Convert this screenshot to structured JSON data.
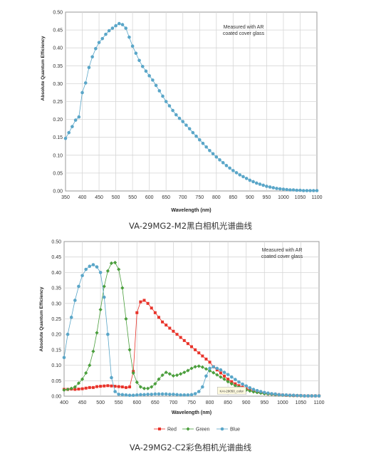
{
  "chart_data": [
    {
      "type": "line",
      "xlabel": "Wavelength (nm)",
      "ylabel": "Absolute Quantum Efficiency",
      "xlim": [
        350,
        1100
      ],
      "ylim": [
        0,
        0.5
      ],
      "xticks": [
        "350",
        "400",
        "450",
        "500",
        "550",
        "600",
        "650",
        "700",
        "750",
        "800",
        "850",
        "900",
        "950",
        "1000",
        "1050",
        "1100"
      ],
      "yticks": [
        "0.00",
        "0.05",
        "0.10",
        "0.15",
        "0.20",
        "0.25",
        "0.30",
        "0.35",
        "0.40",
        "0.45",
        "0.50"
      ],
      "grid": true,
      "annotation": [
        "Measured with AR",
        "coated cover glass"
      ],
      "caption": "VA-29MG2-M2黑白相机光谱曲线",
      "series": [
        {
          "color": "#5aa6c8",
          "x": [
            350,
            360,
            370,
            380,
            390,
            400,
            410,
            420,
            430,
            440,
            450,
            460,
            470,
            480,
            490,
            500,
            510,
            520,
            530,
            540,
            550,
            560,
            570,
            580,
            590,
            600,
            610,
            620,
            630,
            640,
            650,
            660,
            670,
            680,
            690,
            700,
            710,
            720,
            730,
            740,
            750,
            760,
            770,
            780,
            790,
            800,
            810,
            820,
            830,
            840,
            850,
            860,
            870,
            880,
            890,
            900,
            910,
            920,
            930,
            940,
            950,
            960,
            970,
            980,
            990,
            1000,
            1010,
            1020,
            1030,
            1040,
            1050,
            1060,
            1070,
            1080,
            1090,
            1100
          ],
          "y": [
            0.147,
            0.163,
            0.18,
            0.198,
            0.207,
            0.275,
            0.302,
            0.345,
            0.375,
            0.398,
            0.415,
            0.426,
            0.438,
            0.448,
            0.455,
            0.462,
            0.468,
            0.465,
            0.455,
            0.43,
            0.405,
            0.385,
            0.365,
            0.348,
            0.335,
            0.322,
            0.31,
            0.295,
            0.28,
            0.265,
            0.25,
            0.238,
            0.225,
            0.213,
            0.203,
            0.194,
            0.184,
            0.174,
            0.163,
            0.153,
            0.143,
            0.133,
            0.123,
            0.113,
            0.104,
            0.095,
            0.087,
            0.079,
            0.071,
            0.064,
            0.057,
            0.051,
            0.045,
            0.04,
            0.035,
            0.03,
            0.026,
            0.022,
            0.019,
            0.016,
            0.013,
            0.011,
            0.009,
            0.007,
            0.006,
            0.005,
            0.004,
            0.003,
            0.003,
            0.002,
            0.002,
            0.001,
            0.001,
            0.001,
            0.001,
            0.001
          ]
        }
      ]
    },
    {
      "type": "line",
      "xlabel": "Wavelength (nm)",
      "ylabel": "Absolute Quantum Efficiency",
      "xlim": [
        400,
        1100
      ],
      "ylim": [
        0,
        0.5
      ],
      "xticks": [
        "400",
        "450",
        "500",
        "550",
        "600",
        "650",
        "700",
        "750",
        "800",
        "850",
        "900",
        "950",
        "1000",
        "1050",
        "1100"
      ],
      "yticks": [
        "0.00",
        "0.05",
        "0.10",
        "0.15",
        "0.20",
        "0.25",
        "0.30",
        "0.35",
        "0.40",
        "0.45",
        "0.50"
      ],
      "grid": true,
      "legend_position": "bottom",
      "annotation": [
        "Measured with AR",
        "coated cover glass"
      ],
      "tag_label": "KAI-29050_color",
      "caption": "VA-29MG2-C2彩色相机光谱曲线",
      "series": [
        {
          "name": "Red",
          "color": "#e8332a",
          "marker": "square",
          "x": [
            400,
            410,
            420,
            430,
            440,
            450,
            460,
            470,
            480,
            490,
            500,
            510,
            520,
            530,
            540,
            550,
            560,
            570,
            580,
            590,
            600,
            610,
            620,
            630,
            640,
            650,
            660,
            670,
            680,
            690,
            700,
            710,
            720,
            730,
            740,
            750,
            760,
            770,
            780,
            790,
            800,
            810,
            820,
            830,
            840,
            850,
            860,
            870,
            880,
            890,
            900,
            910,
            920,
            930,
            940,
            950,
            960,
            970,
            980,
            990,
            1000,
            1010,
            1020,
            1030,
            1040,
            1050,
            1060,
            1070,
            1080,
            1090,
            1100
          ],
          "y": [
            0.022,
            0.022,
            0.023,
            0.022,
            0.023,
            0.024,
            0.026,
            0.028,
            0.028,
            0.031,
            0.032,
            0.033,
            0.034,
            0.033,
            0.032,
            0.031,
            0.03,
            0.028,
            0.03,
            0.08,
            0.27,
            0.305,
            0.31,
            0.3,
            0.285,
            0.27,
            0.255,
            0.24,
            0.23,
            0.22,
            0.21,
            0.2,
            0.19,
            0.18,
            0.17,
            0.16,
            0.15,
            0.14,
            0.13,
            0.12,
            0.11,
            0.095,
            0.085,
            0.075,
            0.065,
            0.055,
            0.047,
            0.04,
            0.034,
            0.029,
            0.024,
            0.02,
            0.017,
            0.014,
            0.012,
            0.01,
            0.008,
            0.007,
            0.006,
            0.005,
            0.004,
            0.003,
            0.003,
            0.002,
            0.002,
            0.002,
            0.001,
            0.001,
            0.001,
            0.001,
            0.001
          ]
        },
        {
          "name": "Green",
          "color": "#4a9e3c",
          "marker": "diamond",
          "x": [
            400,
            410,
            420,
            430,
            440,
            450,
            460,
            470,
            480,
            490,
            500,
            510,
            520,
            530,
            540,
            550,
            560,
            570,
            580,
            590,
            600,
            610,
            620,
            630,
            640,
            650,
            660,
            670,
            680,
            690,
            700,
            710,
            720,
            730,
            740,
            750,
            760,
            770,
            780,
            790,
            800,
            810,
            820,
            830,
            840,
            850,
            860,
            870,
            880,
            890,
            900,
            910,
            920,
            930,
            940,
            950,
            960,
            970,
            980,
            990,
            1000,
            1010,
            1020,
            1030,
            1040,
            1050,
            1060,
            1070,
            1080,
            1090,
            1100
          ],
          "y": [
            0.02,
            0.022,
            0.025,
            0.03,
            0.042,
            0.055,
            0.075,
            0.1,
            0.145,
            0.205,
            0.28,
            0.355,
            0.405,
            0.43,
            0.432,
            0.41,
            0.35,
            0.25,
            0.15,
            0.075,
            0.045,
            0.03,
            0.025,
            0.025,
            0.03,
            0.04,
            0.055,
            0.068,
            0.077,
            0.072,
            0.066,
            0.068,
            0.072,
            0.077,
            0.083,
            0.09,
            0.095,
            0.097,
            0.094,
            0.088,
            0.082,
            0.076,
            0.069,
            0.062,
            0.055,
            0.047,
            0.04,
            0.034,
            0.029,
            0.024,
            0.02,
            0.017,
            0.014,
            0.012,
            0.01,
            0.008,
            0.007,
            0.006,
            0.005,
            0.004,
            0.003,
            0.003,
            0.002,
            0.002,
            0.002,
            0.001,
            0.001,
            0.001,
            0.001,
            0.001,
            0.001
          ]
        },
        {
          "name": "Blue",
          "color": "#5aa6c8",
          "marker": "circle",
          "x": [
            400,
            410,
            420,
            430,
            440,
            450,
            460,
            470,
            480,
            490,
            500,
            510,
            520,
            530,
            540,
            550,
            560,
            570,
            580,
            590,
            600,
            610,
            620,
            630,
            640,
            650,
            660,
            670,
            680,
            690,
            700,
            710,
            720,
            730,
            740,
            750,
            760,
            770,
            780,
            790,
            800,
            810,
            820,
            830,
            840,
            850,
            860,
            870,
            880,
            890,
            900,
            910,
            920,
            930,
            940,
            950,
            960,
            970,
            980,
            990,
            1000,
            1010,
            1020,
            1030,
            1040,
            1050,
            1060,
            1070,
            1080,
            1090,
            1100
          ],
          "y": [
            0.125,
            0.2,
            0.255,
            0.31,
            0.355,
            0.39,
            0.41,
            0.42,
            0.425,
            0.418,
            0.4,
            0.32,
            0.2,
            0.06,
            0.015,
            0.006,
            0.005,
            0.004,
            0.003,
            0.003,
            0.004,
            0.005,
            0.005,
            0.006,
            0.006,
            0.007,
            0.007,
            0.007,
            0.007,
            0.006,
            0.006,
            0.005,
            0.004,
            0.004,
            0.004,
            0.005,
            0.008,
            0.015,
            0.03,
            0.065,
            0.09,
            0.095,
            0.09,
            0.085,
            0.077,
            0.07,
            0.062,
            0.054,
            0.046,
            0.039,
            0.033,
            0.027,
            0.022,
            0.018,
            0.015,
            0.012,
            0.01,
            0.008,
            0.007,
            0.005,
            0.004,
            0.004,
            0.003,
            0.003,
            0.002,
            0.002,
            0.001,
            0.001,
            0.001,
            0.001,
            0.001
          ]
        }
      ]
    }
  ]
}
